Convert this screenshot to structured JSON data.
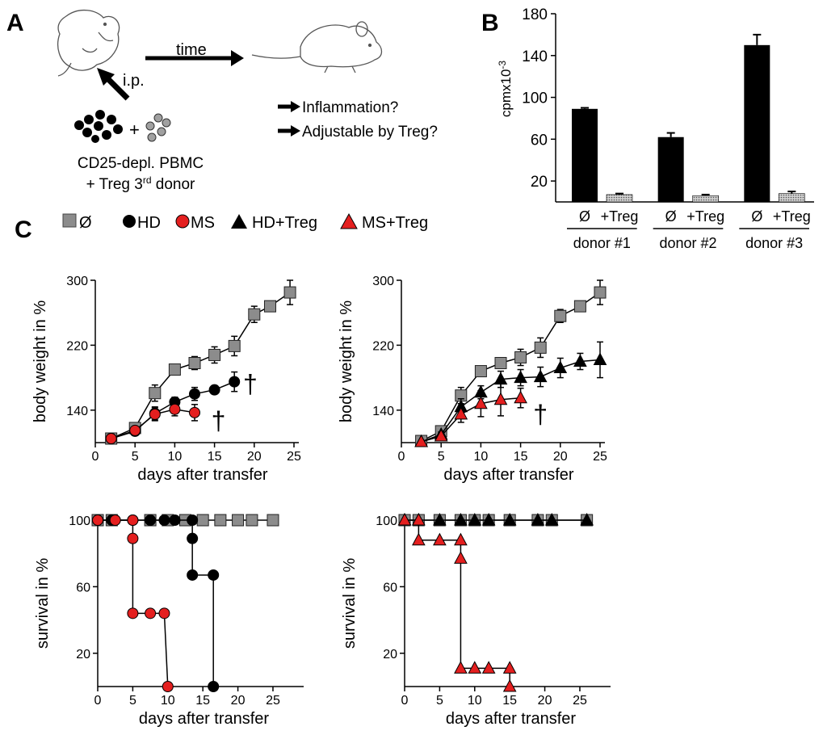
{
  "panels": {
    "A": "A",
    "B": "B",
    "C": "C"
  },
  "schematic": {
    "time": "time",
    "ip": "i.p.",
    "plus": "+",
    "cells_line1": "CD25-depl. PBMC",
    "cells_line2_pre": "+ Treg 3",
    "cells_line2_sup": "rd",
    "cells_line2_post": " donor",
    "question1": "Inflammation?",
    "question2": "Adjustable by Treg?"
  },
  "legend": {
    "none": "Ø",
    "hd": "HD",
    "ms": "MS",
    "hd_treg": "HD+Treg",
    "ms_treg": "MS+Treg"
  },
  "colors": {
    "none": "#8c8c8c",
    "hd": "#000000",
    "ms": "#e41f1f",
    "treg_bar": "#c8c8c8"
  },
  "chart_data": [
    {
      "id": "B",
      "type": "bar",
      "ylabel": "cpmx10",
      "ylabel_sup": "-3",
      "ylim": [
        0,
        180
      ],
      "yticks": [
        20,
        60,
        100,
        140,
        180
      ],
      "categories": [
        "Ø",
        "+Treg",
        "Ø",
        "+Treg",
        "Ø",
        "+Treg"
      ],
      "groups": [
        "donor #1",
        "donor #2",
        "donor #3"
      ],
      "values": [
        89,
        7,
        62,
        6,
        150,
        8
      ],
      "errors": [
        1,
        1,
        4,
        1,
        10,
        2
      ],
      "fill": [
        "hd",
        "treg",
        "hd",
        "treg",
        "hd",
        "treg"
      ]
    },
    {
      "id": "C1",
      "type": "line",
      "xlabel": "days after transfer",
      "ylabel": "body weight in %",
      "xlim": [
        0,
        25
      ],
      "xticks": [
        0,
        5,
        10,
        15,
        20,
        25
      ],
      "ylim": [
        100,
        300
      ],
      "yticks": [
        140,
        220,
        300
      ],
      "series": [
        {
          "name": "Ø",
          "marker": "square",
          "color": "#8c8c8c",
          "x": [
            2,
            5,
            7.5,
            10,
            12.5,
            15,
            17.5,
            20,
            22,
            24.5
          ],
          "y": [
            105,
            118,
            161,
            190,
            198,
            208,
            219,
            258,
            268,
            285
          ],
          "err": [
            0,
            3,
            10,
            6,
            8,
            10,
            12,
            10,
            4,
            15
          ]
        },
        {
          "name": "HD",
          "marker": "circle",
          "color": "#000000",
          "x": [
            2,
            5,
            7.5,
            10,
            12.5,
            15,
            17.5
          ],
          "y": [
            105,
            114,
            136,
            150,
            160,
            165,
            175
          ],
          "err": [
            0,
            3,
            8,
            6,
            8,
            5,
            12
          ]
        },
        {
          "name": "MS",
          "marker": "circle",
          "color": "#e41f1f",
          "x": [
            2,
            5,
            7.5,
            10,
            12.5
          ],
          "y": [
            105,
            115,
            135,
            141,
            137
          ],
          "err": [
            0,
            3,
            8,
            8,
            10
          ]
        }
      ],
      "annotations": [
        {
          "text": "†",
          "x": 19.5,
          "y": 175
        },
        {
          "text": "†",
          "x": 15.5,
          "y": 130
        }
      ]
    },
    {
      "id": "C2",
      "type": "line",
      "xlabel": "days after transfer",
      "ylabel": "body weight  in %",
      "xlim": [
        0,
        25
      ],
      "xticks": [
        0,
        5,
        10,
        15,
        20,
        25
      ],
      "ylim": [
        100,
        300
      ],
      "yticks": [
        140,
        220,
        300
      ],
      "series": [
        {
          "name": "Ø",
          "marker": "square",
          "color": "#8c8c8c",
          "x": [
            2.5,
            5,
            7.5,
            10,
            12.5,
            15,
            17.5,
            20,
            22.5,
            25
          ],
          "y": [
            102,
            114,
            158,
            188,
            198,
            205,
            217,
            256,
            268,
            285
          ],
          "err": [
            0,
            3,
            10,
            5,
            6,
            10,
            12,
            8,
            4,
            15
          ]
        },
        {
          "name": "HD+Treg",
          "marker": "triangle",
          "color": "#000000",
          "x": [
            2.5,
            5,
            7.5,
            10,
            12.5,
            15,
            17.5,
            20,
            22.5,
            25
          ],
          "y": [
            101,
            110,
            144,
            162,
            178,
            180,
            181,
            192,
            200,
            202
          ],
          "err": [
            0,
            3,
            10,
            8,
            10,
            10,
            12,
            12,
            10,
            22
          ]
        },
        {
          "name": "MS+Treg",
          "marker": "triangle",
          "color": "#e41f1f",
          "x": [
            2.5,
            5,
            7.5,
            10,
            12.5,
            15
          ],
          "y": [
            101,
            108,
            135,
            148,
            153,
            155
          ],
          "err": [
            0,
            3,
            10,
            16,
            20,
            12
          ]
        }
      ],
      "annotations": [
        {
          "text": "†",
          "x": 17.5,
          "y": 138
        }
      ]
    },
    {
      "id": "C3",
      "type": "line",
      "step": true,
      "xlabel": "days after transfer",
      "ylabel": "survival in %",
      "xlim": [
        0,
        28
      ],
      "xticks": [
        0,
        5,
        10,
        15,
        20,
        25
      ],
      "ylim": [
        0,
        100
      ],
      "yticks": [
        20,
        60,
        100
      ],
      "series": [
        {
          "name": "Ø",
          "marker": "square",
          "color": "#8c8c8c",
          "x": [
            0,
            2,
            7.5,
            10,
            12.5,
            15,
            17.5,
            20,
            22,
            25
          ],
          "y": [
            100,
            100,
            100,
            100,
            100,
            100,
            100,
            100,
            100,
            100
          ]
        },
        {
          "name": "HD",
          "marker": "circle",
          "color": "#000000",
          "x": [
            0,
            2,
            5,
            7.5,
            9.5,
            11,
            13.5,
            13.5,
            13.5,
            16.5,
            16.5
          ],
          "y": [
            100,
            100,
            100,
            100,
            100,
            100,
            100,
            89,
            67,
            67,
            0
          ]
        },
        {
          "name": "MS",
          "marker": "circle",
          "color": "#e41f1f",
          "x": [
            0,
            2.5,
            5,
            5,
            5,
            7.5,
            9.5,
            10
          ],
          "y": [
            100,
            100,
            100,
            89,
            44,
            44,
            44,
            0
          ]
        }
      ]
    },
    {
      "id": "C4",
      "type": "line",
      "step": true,
      "xlabel": "days after transfer",
      "ylabel": "survival in %",
      "xlim": [
        0,
        28
      ],
      "xticks": [
        0,
        5,
        10,
        15,
        20,
        25
      ],
      "ylim": [
        0,
        100
      ],
      "yticks": [
        20,
        60,
        100
      ],
      "series": [
        {
          "name": "Ø",
          "marker": "square",
          "color": "#8c8c8c",
          "x": [
            0,
            2,
            5,
            8,
            10,
            12,
            15,
            19,
            21,
            26
          ],
          "y": [
            100,
            100,
            100,
            100,
            100,
            100,
            100,
            100,
            100,
            100
          ]
        },
        {
          "name": "HD+Treg",
          "marker": "triangle",
          "color": "#000000",
          "x": [
            0,
            2,
            5,
            8,
            10,
            12,
            15,
            19,
            21,
            26
          ],
          "y": [
            100,
            100,
            100,
            100,
            100,
            100,
            100,
            100,
            100,
            100
          ]
        },
        {
          "name": "MS+Treg",
          "marker": "triangle",
          "color": "#e41f1f",
          "x": [
            0,
            2,
            2,
            5,
            8,
            8,
            8,
            10,
            12,
            15,
            15
          ],
          "y": [
            100,
            100,
            88,
            88,
            88,
            77,
            11,
            11,
            11,
            11,
            0
          ]
        }
      ]
    }
  ]
}
